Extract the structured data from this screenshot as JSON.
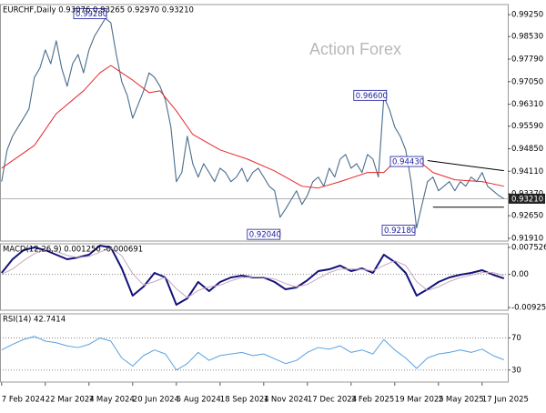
{
  "chart_data": [
    {
      "type": "line",
      "title": "EURCHF,Daily 0.93076 0.93265 0.92970 0.93210",
      "watermark": "Action Forex",
      "x": [
        0,
        1,
        2,
        3,
        4,
        5,
        6,
        7,
        8,
        9,
        10,
        11,
        12,
        13,
        14,
        15,
        16,
        17,
        18,
        19,
        20,
        21,
        22,
        23,
        24,
        25,
        26,
        27,
        28,
        29,
        30,
        31,
        32,
        33,
        34,
        35,
        36,
        37,
        38,
        39,
        40,
        41,
        42,
        43,
        44,
        45,
        46,
        47,
        48,
        49,
        50,
        51,
        52,
        53,
        54,
        55,
        56,
        57,
        58,
        59,
        60,
        61,
        62,
        63,
        64,
        65,
        66,
        67,
        68,
        69,
        70,
        71,
        72,
        73,
        74,
        75,
        76,
        77,
        78,
        79,
        80,
        81,
        82,
        83,
        84,
        85,
        86,
        87,
        88,
        89,
        90,
        91,
        92
      ],
      "series": [
        {
          "color": "#4a6d8c",
          "values": [
            0.9377,
            0.9481,
            0.9526,
            0.9556,
            0.9585,
            0.9615,
            0.9719,
            0.9749,
            0.9809,
            0.9764,
            0.9839,
            0.9749,
            0.969,
            0.9764,
            0.9794,
            0.9734,
            0.9809,
            0.9854,
            0.9883,
            0.9913,
            0.9898,
            0.9794,
            0.9705,
            0.966,
            0.9585,
            0.963,
            0.9675,
            0.9734,
            0.9719,
            0.969,
            0.9645,
            0.9556,
            0.9377,
            0.9407,
            0.9526,
            0.9436,
            0.9392,
            0.9436,
            0.9407,
            0.9377,
            0.9421,
            0.9407,
            0.9377,
            0.9392,
            0.9421,
            0.9377,
            0.9407,
            0.9421,
            0.9392,
            0.9362,
            0.9347,
            0.926,
            0.9287,
            0.9317,
            0.9347,
            0.9302,
            0.9332,
            0.9377,
            0.9392,
            0.9362,
            0.9421,
            0.9392,
            0.9451,
            0.9466,
            0.9421,
            0.9436,
            0.9407,
            0.9466,
            0.9451,
            0.9392,
            0.9655,
            0.9615,
            0.9556,
            0.9526,
            0.9481,
            0.9377,
            0.9225,
            0.9302,
            0.9377,
            0.9392,
            0.9347,
            0.9362,
            0.9377,
            0.9347,
            0.9377,
            0.9362,
            0.9392,
            0.9377,
            0.9407,
            0.9362,
            0.9347,
            0.9332,
            0.9321
          ]
        },
        {
          "color": "#e8262a",
          "x": [
            0,
            6,
            10,
            15,
            18,
            20,
            24,
            27,
            29,
            32,
            35,
            40,
            45,
            50,
            55,
            58,
            62,
            67,
            70,
            73,
            76,
            79,
            83,
            88,
            92
          ],
          "values": [
            0.9421,
            0.9496,
            0.96,
            0.9675,
            0.9734,
            0.9758,
            0.971,
            0.9669,
            0.9675,
            0.9609,
            0.9532,
            0.9481,
            0.9451,
            0.9412,
            0.9362,
            0.9356,
            0.9377,
            0.9407,
            0.9407,
            0.946,
            0.9451,
            0.9407,
            0.9383,
            0.9377,
            0.9362
          ]
        },
        {
          "color": "#000000",
          "x": [
            78,
            92
          ],
          "values": [
            0.9446,
            0.9413
          ]
        },
        {
          "color": "#000000",
          "x": [
            79,
            92
          ],
          "values": [
            0.9293,
            0.9293
          ]
        }
      ],
      "xlim": [
        -0.3,
        92.7
      ],
      "xticks": [
        {
          "value": 0,
          "label": "7 Feb 2024"
        },
        {
          "value": 8,
          "label": "22 Mar 2024"
        },
        {
          "value": 16,
          "label": "7 May 2024"
        },
        {
          "value": 24,
          "label": "20 Jun 2024"
        },
        {
          "value": 32,
          "label": "5 Aug 2024"
        },
        {
          "value": 40,
          "label": "18 Sep 2024"
        },
        {
          "value": 48,
          "label": "1 Nov 2024"
        },
        {
          "value": 56,
          "label": "17 Dec 2024"
        },
        {
          "value": 64,
          "label": "3 Feb 2025"
        },
        {
          "value": 72,
          "label": "19 Mar 2025"
        },
        {
          "value": 80,
          "label": "2 May 2025"
        },
        {
          "value": 88,
          "label": "17 Jun 2025"
        }
      ],
      "ylim": [
        0.9182,
        0.9958
      ],
      "yticks": [
        {
          "value": 0.9925,
          "label": "0.99250"
        },
        {
          "value": 0.9853,
          "label": "0.98530"
        },
        {
          "value": 0.9779,
          "label": "0.97790"
        },
        {
          "value": 0.9705,
          "label": "0.97050"
        },
        {
          "value": 0.9631,
          "label": "0.96310"
        },
        {
          "value": 0.9559,
          "label": "0.95590"
        },
        {
          "value": 0.9485,
          "label": "0.94850"
        },
        {
          "value": 0.9411,
          "label": "0.94110"
        },
        {
          "value": 0.9337,
          "label": "0.93370"
        },
        {
          "value": 0.9265,
          "label": "0.92650"
        },
        {
          "value": 0.9191,
          "label": "0.91910"
        }
      ],
      "current": {
        "value": 0.9321,
        "label": "0.93210"
      },
      "annotations": [
        {
          "x": 19.2,
          "value": 0.9928,
          "label": "0.99280"
        },
        {
          "x": 51,
          "value": 0.9204,
          "label": "0.92040"
        },
        {
          "x": 70.5,
          "value": 0.966,
          "label": "0.96600"
        },
        {
          "x": 77.2,
          "value": 0.9443,
          "label": "0.94430"
        },
        {
          "x": 75.7,
          "value": 0.9218,
          "label": "0.92180"
        }
      ]
    },
    {
      "type": "line",
      "title": "MACD(12,26,9) 0.001250 -0.000691",
      "x": [
        0,
        2,
        4,
        6,
        8,
        10,
        12,
        14,
        16,
        18,
        20,
        22,
        24,
        26,
        28,
        30,
        32,
        34,
        36,
        38,
        40,
        42,
        44,
        46,
        48,
        50,
        52,
        54,
        56,
        58,
        60,
        62,
        64,
        66,
        68,
        70,
        72,
        74,
        76,
        78,
        80,
        82,
        84,
        86,
        88,
        90,
        92
      ],
      "series": [
        {
          "color": "#12127a",
          "values": [
            0.00041,
            0.00422,
            0.00676,
            0.00752,
            0.00676,
            0.00549,
            0.00422,
            0.00472,
            0.00549,
            0.00803,
            0.00752,
            0.00168,
            -0.00594,
            -0.0034,
            0.00041,
            -0.00086,
            -0.00848,
            -0.00671,
            -0.00213,
            -0.00467,
            -0.00213,
            -0.00086,
            -0.00036,
            -0.00086,
            -0.00086,
            -0.00213,
            -0.00417,
            -0.00366,
            -0.00163,
            0.00091,
            0.00142,
            0.00244,
            0.00091,
            0.00168,
            0.00041,
            0.00549,
            0.00345,
            0.00041,
            -0.00594,
            -0.00417,
            -0.00213,
            -0.00086,
            -0.0001,
            0.00041,
            0.00117,
            -0.0001,
            -0.00112
          ]
        },
        {
          "color": "#c8a8c0",
          "values": [
            0,
            0.0015,
            0.0038,
            0.0058,
            0.0069,
            0.0064,
            0.0053,
            0.0047,
            0.005,
            0.0062,
            0.0074,
            0.0052,
            0.0002,
            -0.003,
            -0.002,
            -0.0008,
            -0.004,
            -0.0065,
            -0.0045,
            -0.0035,
            -0.003,
            -0.0018,
            -0.0009,
            -0.0007,
            -0.0008,
            -0.0013,
            -0.0026,
            -0.0035,
            -0.0028,
            -0.0011,
            0.0005,
            0.0015,
            0.0015,
            0.0014,
            0.001,
            0.0025,
            0.0038,
            0.0025,
            -0.002,
            -0.0045,
            -0.0035,
            -0.002,
            -0.0009,
            -0.0002,
            0.0005,
            0.0005,
            -0.0003
          ]
        }
      ],
      "ylim": [
        -0.01001,
        0.00854
      ],
      "yticks": [
        0.007526,
        {
          "value": 0,
          "label": "0.00"
        },
        -0.009252
      ],
      "levels": [
        0
      ]
    },
    {
      "type": "line",
      "title": "RSI(14) 42.7414",
      "x": [
        0,
        2,
        4,
        6,
        8,
        10,
        12,
        14,
        16,
        18,
        20,
        22,
        24,
        26,
        28,
        30,
        32,
        34,
        36,
        38,
        40,
        42,
        44,
        46,
        48,
        50,
        52,
        54,
        56,
        58,
        60,
        62,
        64,
        66,
        68,
        70,
        72,
        74,
        76,
        78,
        80,
        82,
        84,
        86,
        88,
        90,
        92
      ],
      "series": [
        {
          "color": "#5aa0e0",
          "values": [
            55,
            62,
            68,
            72,
            66,
            64,
            60,
            58,
            62,
            70,
            66,
            45,
            35,
            48,
            55,
            50,
            30,
            38,
            52,
            42,
            48,
            50,
            52,
            48,
            50,
            44,
            38,
            42,
            52,
            58,
            56,
            60,
            52,
            55,
            50,
            68,
            55,
            45,
            32,
            45,
            50,
            52,
            55,
            52,
            56,
            48,
            42.7414
          ]
        }
      ],
      "ylim": [
        15,
        100
      ],
      "yticks": [
        70,
        30
      ],
      "levels": [
        70,
        30
      ]
    }
  ]
}
